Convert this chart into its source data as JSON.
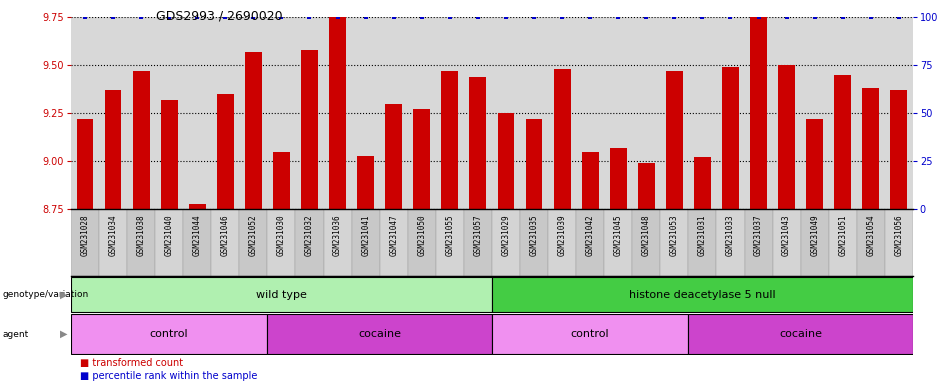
{
  "title": "GDS2993 / 2690020",
  "samples": [
    "GSM231028",
    "GSM231034",
    "GSM231038",
    "GSM231040",
    "GSM231044",
    "GSM231046",
    "GSM231052",
    "GSM231030",
    "GSM231032",
    "GSM231036",
    "GSM231041",
    "GSM231047",
    "GSM231050",
    "GSM231055",
    "GSM231057",
    "GSM231029",
    "GSM231035",
    "GSM231039",
    "GSM231042",
    "GSM231045",
    "GSM231048",
    "GSM231053",
    "GSM231031",
    "GSM231033",
    "GSM231037",
    "GSM231043",
    "GSM231049",
    "GSM231051",
    "GSM231054",
    "GSM231056"
  ],
  "bar_values": [
    9.22,
    9.37,
    9.47,
    9.32,
    8.78,
    9.35,
    9.57,
    9.05,
    9.58,
    9.75,
    9.03,
    9.3,
    9.27,
    9.47,
    9.44,
    9.25,
    9.22,
    9.48,
    9.05,
    9.07,
    8.99,
    9.47,
    9.02,
    9.49,
    9.87,
    9.5,
    9.22,
    9.45,
    9.38,
    9.37
  ],
  "percentile_values": [
    100,
    100,
    100,
    100,
    100,
    100,
    100,
    100,
    100,
    100,
    100,
    100,
    100,
    100,
    100,
    100,
    100,
    100,
    100,
    100,
    100,
    100,
    100,
    100,
    100,
    100,
    100,
    100,
    100,
    100
  ],
  "ylim_left": [
    8.75,
    9.75
  ],
  "ylim_right": [
    0,
    100
  ],
  "yticks_left": [
    8.75,
    9.0,
    9.25,
    9.5,
    9.75
  ],
  "yticks_right": [
    0,
    25,
    50,
    75,
    100
  ],
  "bar_color": "#cc0000",
  "percentile_color": "#0000cc",
  "background_color": "#ffffff",
  "plot_bg_color": "#d8d8d8",
  "label_bg_color": "#c8c8c8",
  "genotype_groups": [
    {
      "label": "wild type",
      "start": 0,
      "end": 15,
      "color": "#b0f0b0"
    },
    {
      "label": "histone deacetylase 5 null",
      "start": 15,
      "end": 30,
      "color": "#44cc44"
    }
  ],
  "agent_groups": [
    {
      "label": "control",
      "start": 0,
      "end": 7,
      "color": "#f090f0"
    },
    {
      "label": "cocaine",
      "start": 7,
      "end": 15,
      "color": "#cc44cc"
    },
    {
      "label": "control",
      "start": 15,
      "end": 22,
      "color": "#f090f0"
    },
    {
      "label": "cocaine",
      "start": 22,
      "end": 30,
      "color": "#cc44cc"
    }
  ],
  "legend_items": [
    {
      "label": "transformed count",
      "color": "#cc0000"
    },
    {
      "label": "percentile rank within the sample",
      "color": "#0000cc"
    }
  ],
  "bar_width": 0.6,
  "n": 30
}
